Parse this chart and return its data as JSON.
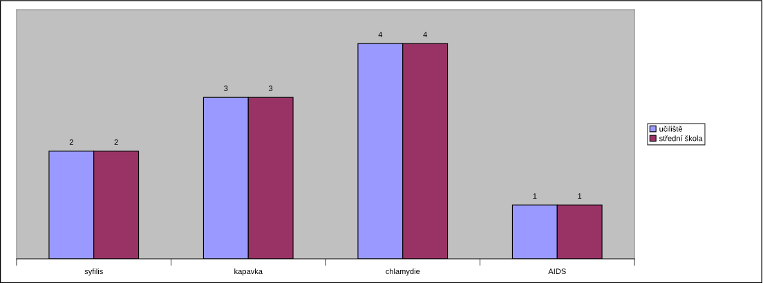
{
  "chart_data": {
    "type": "bar",
    "categories": [
      "syfilis",
      "kapavka",
      "chlamydie",
      "AIDS"
    ],
    "series": [
      {
        "name": "učiliště",
        "color": "#9999ff",
        "values": [
          2,
          3,
          4,
          1
        ]
      },
      {
        "name": "střední škola",
        "color": "#993366",
        "values": [
          2,
          3,
          4,
          1
        ]
      }
    ],
    "ylim": [
      0,
      4.63
    ],
    "data_labels": true,
    "grid": false,
    "legend": "right",
    "tick_labels": "x"
  }
}
